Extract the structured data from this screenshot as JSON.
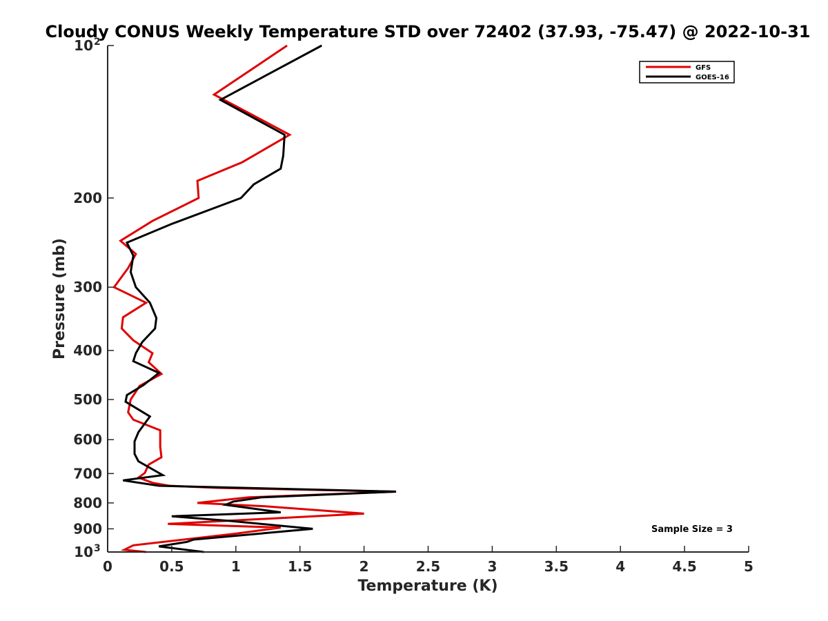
{
  "chart_data": {
    "type": "line",
    "title": "Cloudy CONUS Weekly Temperature STD over 72402 (37.93, -75.47) @ 2022-10-31",
    "xlabel": "Temperature (K)",
    "ylabel": "Pressure (mb)",
    "xlim": [
      0,
      5
    ],
    "ylim": [
      100,
      1000
    ],
    "y_scale": "log",
    "y_reversed": true,
    "grid": false,
    "legend_position": "top-right",
    "x_ticks": [
      {
        "value": 0,
        "label": "0"
      },
      {
        "value": 0.5,
        "label": "0.5"
      },
      {
        "value": 1,
        "label": "1"
      },
      {
        "value": 1.5,
        "label": "1.5"
      },
      {
        "value": 2,
        "label": "2"
      },
      {
        "value": 2.5,
        "label": "2.5"
      },
      {
        "value": 3,
        "label": "3"
      },
      {
        "value": 3.5,
        "label": "3.5"
      },
      {
        "value": 4,
        "label": "4"
      },
      {
        "value": 4.5,
        "label": "4.5"
      },
      {
        "value": 5,
        "label": "5"
      }
    ],
    "y_ticks": [
      {
        "value": 100,
        "label": "10",
        "sup": "2"
      },
      {
        "value": 200,
        "label": "200",
        "sup": ""
      },
      {
        "value": 300,
        "label": "300",
        "sup": ""
      },
      {
        "value": 400,
        "label": "400",
        "sup": ""
      },
      {
        "value": 500,
        "label": "500",
        "sup": ""
      },
      {
        "value": 600,
        "label": "600",
        "sup": ""
      },
      {
        "value": 700,
        "label": "700",
        "sup": ""
      },
      {
        "value": 800,
        "label": "800",
        "sup": ""
      },
      {
        "value": 900,
        "label": "900",
        "sup": ""
      },
      {
        "value": 1000,
        "label": "10",
        "sup": "3"
      }
    ],
    "series": [
      {
        "name": "GFS",
        "color": "#e00000",
        "points": [
          [
            1.4,
            100
          ],
          [
            0.83,
            125
          ],
          [
            1.42,
            150
          ],
          [
            1.05,
            170
          ],
          [
            0.7,
            185
          ],
          [
            0.71,
            200
          ],
          [
            0.35,
            222
          ],
          [
            0.1,
            243
          ],
          [
            0.22,
            258
          ],
          [
            0.16,
            275
          ],
          [
            0.05,
            300
          ],
          [
            0.3,
            322
          ],
          [
            0.12,
            344
          ],
          [
            0.11,
            362
          ],
          [
            0.2,
            382
          ],
          [
            0.35,
            405
          ],
          [
            0.32,
            422
          ],
          [
            0.42,
            445
          ],
          [
            0.25,
            470
          ],
          [
            0.18,
            500
          ],
          [
            0.16,
            530
          ],
          [
            0.2,
            548
          ],
          [
            0.41,
            575
          ],
          [
            0.41,
            620
          ],
          [
            0.42,
            650
          ],
          [
            0.32,
            672
          ],
          [
            0.29,
            698
          ],
          [
            0.24,
            713
          ],
          [
            0.35,
            730
          ],
          [
            0.48,
            740
          ],
          [
            0.85,
            747
          ],
          [
            2.25,
            760
          ],
          [
            1.1,
            780
          ],
          [
            0.7,
            800
          ],
          [
            1.22,
            812
          ],
          [
            2.0,
            840
          ],
          [
            0.47,
            880
          ],
          [
            1.35,
            895
          ],
          [
            1.0,
            920
          ],
          [
            0.2,
            970
          ],
          [
            0.13,
            990
          ],
          [
            0.3,
            1000
          ]
        ]
      },
      {
        "name": "GOES-16",
        "color": "#000000",
        "points": [
          [
            1.67,
            100
          ],
          [
            0.88,
            128
          ],
          [
            1.38,
            150
          ],
          [
            1.37,
            165
          ],
          [
            1.35,
            175
          ],
          [
            1.14,
            188
          ],
          [
            1.04,
            200
          ],
          [
            0.5,
            225
          ],
          [
            0.15,
            245
          ],
          [
            0.2,
            260
          ],
          [
            0.18,
            280
          ],
          [
            0.22,
            300
          ],
          [
            0.33,
            322
          ],
          [
            0.38,
            345
          ],
          [
            0.37,
            362
          ],
          [
            0.27,
            385
          ],
          [
            0.22,
            405
          ],
          [
            0.2,
            420
          ],
          [
            0.4,
            443
          ],
          [
            0.28,
            468
          ],
          [
            0.15,
            490
          ],
          [
            0.14,
            505
          ],
          [
            0.33,
            540
          ],
          [
            0.24,
            580
          ],
          [
            0.21,
            605
          ],
          [
            0.21,
            640
          ],
          [
            0.24,
            662
          ],
          [
            0.43,
            705
          ],
          [
            0.12,
            722
          ],
          [
            0.4,
            740
          ],
          [
            2.25,
            760
          ],
          [
            1.2,
            780
          ],
          [
            0.98,
            795
          ],
          [
            0.92,
            807
          ],
          [
            1.35,
            835
          ],
          [
            0.5,
            850
          ],
          [
            0.95,
            868
          ],
          [
            1.6,
            900
          ],
          [
            0.67,
            945
          ],
          [
            0.62,
            955
          ],
          [
            0.4,
            975
          ],
          [
            0.75,
            1000
          ]
        ]
      }
    ],
    "legend": {
      "entries": [
        "GFS",
        "GOES-16"
      ]
    },
    "annotation": "Sample Size = 3"
  }
}
